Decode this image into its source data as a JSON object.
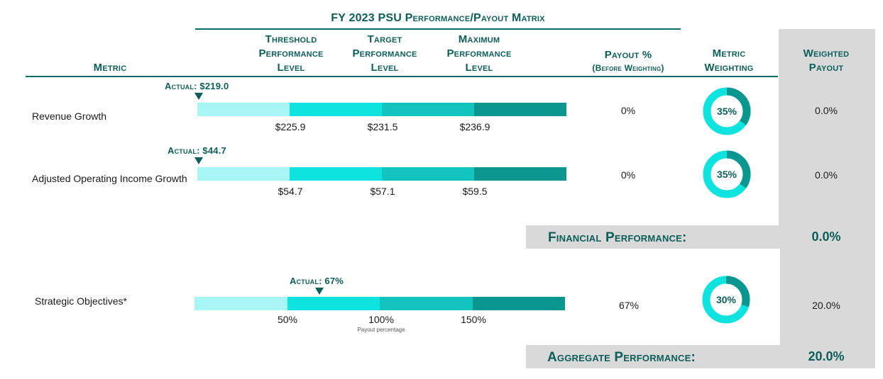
{
  "matrix_title": "FY 2023 PSU Performance/Payout Matrix",
  "headers": {
    "metric": "Metric",
    "threshold": [
      "Threshold",
      "Performance",
      "Level"
    ],
    "target": [
      "Target",
      "Performance",
      "Level"
    ],
    "maximum": [
      "Maximum",
      "Performance",
      "Level"
    ],
    "payout": [
      "Payout %",
      "(Before Weighting)"
    ],
    "weighting": [
      "Metric",
      "Weighting"
    ],
    "weighted_payout": [
      "Weighted",
      "Payout"
    ]
  },
  "colors": {
    "seg1": "#a8f5f5",
    "seg2": "#0fe3e0",
    "seg3": "#13c4be",
    "seg4": "#0b9690",
    "donut_fill": "#0b9690",
    "donut_rest": "#0fe3e0",
    "accent": "#0b5e5a"
  },
  "chart_data": {
    "type": "table",
    "title": "FY 2023 PSU Performance/Payout Matrix",
    "rows": [
      {
        "metric": "Revenue Growth",
        "actual_label": "Actual: $219.0",
        "actual_value": 219.0,
        "ticks": [
          "$225.9",
          "$231.5",
          "$236.9"
        ],
        "tick_values": [
          225.9,
          231.5,
          236.9
        ],
        "payout": "0%",
        "weighting_label": "35%",
        "weighting_value": 35,
        "weighted_payout": "0.0%"
      },
      {
        "metric": "Adjusted Operating Income Growth",
        "actual_label": "Actual: $44.7",
        "actual_value": 44.7,
        "ticks": [
          "$54.7",
          "$57.1",
          "$59.5"
        ],
        "tick_values": [
          54.7,
          57.1,
          59.5
        ],
        "payout": "0%",
        "weighting_label": "35%",
        "weighting_value": 35,
        "weighted_payout": "0.0%"
      },
      {
        "metric": "Strategic Objectives*",
        "actual_label": "Actual: 67%",
        "actual_value": 67,
        "ticks": [
          "50%",
          "100%",
          "150%"
        ],
        "tick_values": [
          50,
          100,
          150
        ],
        "axis_note": "Payout percentage",
        "payout": "67%",
        "weighting_label": "30%",
        "weighting_value": 30,
        "weighted_payout": "20.0%"
      }
    ],
    "financial_performance": {
      "label": "Financial Performance:",
      "value": "0.0%"
    },
    "aggregate_performance": {
      "label": "Aggregate Performance:",
      "value": "20.0%"
    }
  }
}
